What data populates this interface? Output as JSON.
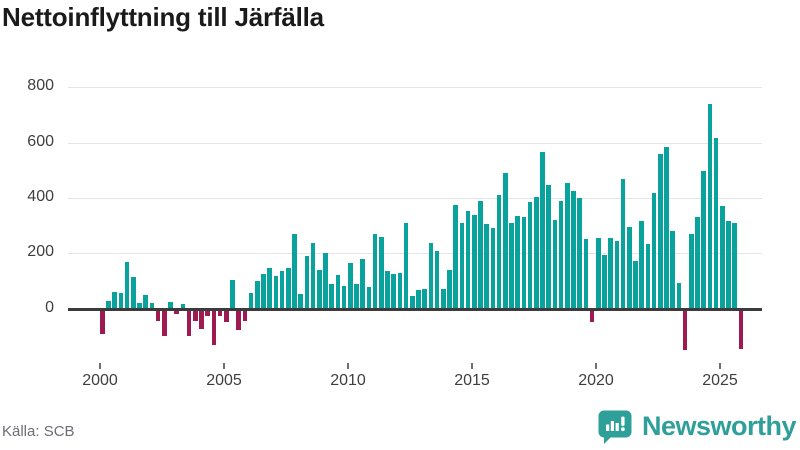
{
  "title": "Nettoinflyttning till Järfälla",
  "footer": {
    "source": "Källa: SCB",
    "brand": "Newsworthy"
  },
  "chart_data": {
    "type": "bar",
    "title": "Nettoinflyttning till Järfälla",
    "x_start": "2000-Q1",
    "frequency": "quarterly",
    "values": [
      -90,
      27,
      60,
      58,
      170,
      115,
      22,
      48,
      22,
      -45,
      -100,
      25,
      -20,
      18,
      -100,
      -45,
      -73,
      -28,
      -130,
      -25,
      -50,
      105,
      -78,
      -45,
      55,
      100,
      124,
      145,
      118,
      136,
      148,
      270,
      54,
      190,
      238,
      140,
      200,
      90,
      122,
      80,
      166,
      90,
      180,
      78,
      270,
      260,
      135,
      125,
      130,
      310,
      47,
      68,
      71,
      238,
      209,
      71,
      140,
      373,
      310,
      353,
      340,
      388,
      305,
      290,
      410,
      490,
      310,
      335,
      330,
      385,
      405,
      565,
      445,
      320,
      390,
      455,
      425,
      400,
      250,
      -50,
      255,
      195,
      255,
      245,
      468,
      296,
      172,
      318,
      232,
      419,
      558,
      585,
      282,
      94,
      -150,
      268,
      332,
      496,
      740,
      615,
      371,
      315,
      308,
      -145
    ],
    "xticks": [
      "2000",
      "2005",
      "2010",
      "2015",
      "2020",
      "2025"
    ],
    "yticks": [
      0,
      200,
      400,
      600,
      800
    ],
    "ylim": [
      -170,
      800
    ],
    "grid": "horizontal-light",
    "legend": "none",
    "positive_color": "#0aa29d",
    "negative_color": "#9e1b52",
    "axis_line_color": "#3b3b3b",
    "gridline_color": "#e4e4e4"
  }
}
